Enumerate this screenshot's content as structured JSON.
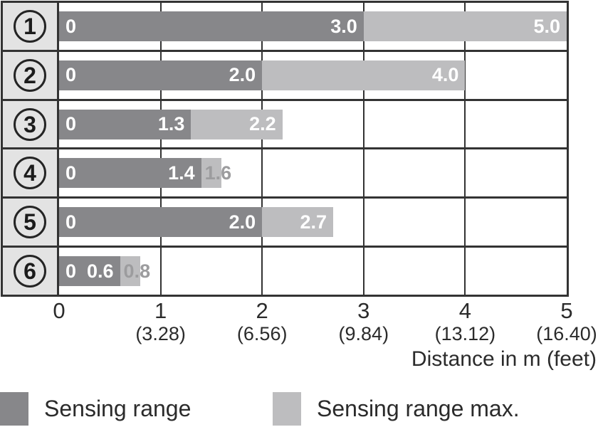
{
  "colors": {
    "dark_bar": "#87878a",
    "light_bar": "#bdbdbf",
    "row_label_bg": "#e3e3e3",
    "grid_line": "#333333",
    "overflow_label_text": "#9c9c9e",
    "axis_text": "#2b2b2b"
  },
  "chart_data": {
    "type": "bar",
    "orientation": "horizontal",
    "title": "",
    "xlabel": "Distance in m (feet)",
    "xlim": [
      0,
      5
    ],
    "grid": true,
    "legend_position": "bottom",
    "x_ticks": [
      {
        "m": "0",
        "feet": ""
      },
      {
        "m": "1",
        "feet": "(3.28)"
      },
      {
        "m": "2",
        "feet": "(6.56)"
      },
      {
        "m": "3",
        "feet": "(9.84)"
      },
      {
        "m": "4",
        "feet": "(13.12)"
      },
      {
        "m": "5",
        "feet": "(16.40)"
      }
    ],
    "categories": [
      "1",
      "2",
      "3",
      "4",
      "5",
      "6"
    ],
    "series": [
      {
        "name": "Sensing range",
        "values": [
          3.0,
          2.0,
          1.3,
          1.4,
          2.0,
          0.6
        ]
      },
      {
        "name": "Sensing range max.",
        "values": [
          5.0,
          4.0,
          2.2,
          1.6,
          2.7,
          0.8
        ]
      }
    ],
    "rows": [
      {
        "index": "1",
        "start_label": "0",
        "range": 3.0,
        "range_label": "3.0",
        "max": 5.0,
        "max_label": "5.0",
        "max_label_placement": "inside"
      },
      {
        "index": "2",
        "start_label": "0",
        "range": 2.0,
        "range_label": "2.0",
        "max": 4.0,
        "max_label": "4.0",
        "max_label_placement": "inside"
      },
      {
        "index": "3",
        "start_label": "0",
        "range": 1.3,
        "range_label": "1.3",
        "max": 2.2,
        "max_label": "2.2",
        "max_label_placement": "inside"
      },
      {
        "index": "4",
        "start_label": "0",
        "range": 1.4,
        "range_label": "1.4",
        "max": 1.6,
        "max_label": "1.6",
        "max_label_placement": "overflow"
      },
      {
        "index": "5",
        "start_label": "0",
        "range": 2.0,
        "range_label": "2.0",
        "max": 2.7,
        "max_label": "2.7",
        "max_label_placement": "inside"
      },
      {
        "index": "6",
        "start_label": "0",
        "range": 0.6,
        "range_label": "0.6",
        "max": 0.8,
        "max_label": "0.8",
        "max_label_placement": "overflow"
      }
    ],
    "legend": [
      {
        "label": "Sensing range",
        "swatch": "dark"
      },
      {
        "label": "Sensing range max.",
        "swatch": "light"
      }
    ]
  }
}
